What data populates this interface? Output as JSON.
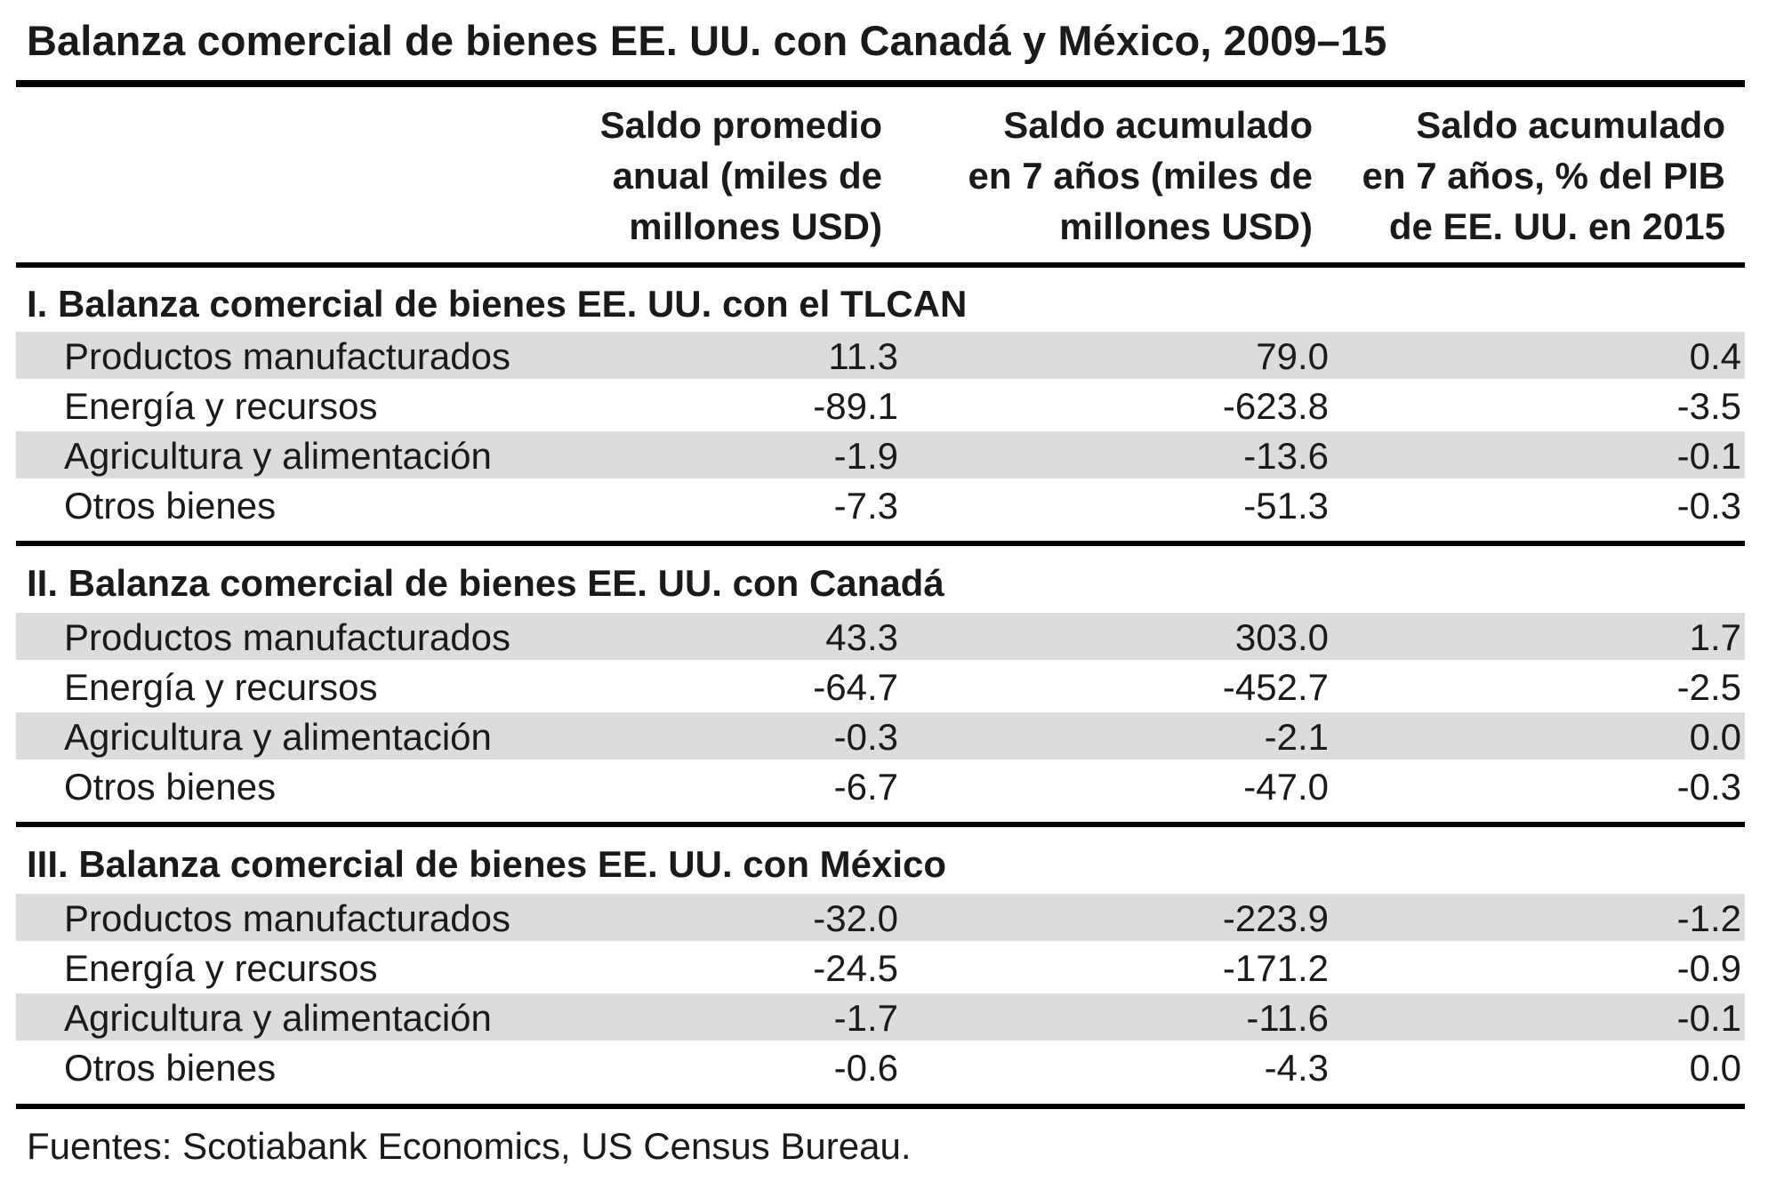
{
  "title": "Balanza comercial de bienes EE. UU. con Canadá y México, 2009–15",
  "columns": [
    [
      "Saldo promedio",
      "anual (miles de",
      "millones USD)"
    ],
    [
      "Saldo acumulado",
      "en 7 años (miles de",
      "millones USD)"
    ],
    [
      "Saldo acumulado",
      "en 7 años, % del PIB",
      "de EE. UU. en 2015"
    ]
  ],
  "sections": [
    {
      "title": "I. Balanza comercial de bienes EE. UU. con el TLCAN",
      "rows": [
        {
          "label": "Productos manufacturados",
          "v1": "11.3",
          "v2": "79.0",
          "v3": "0.4"
        },
        {
          "label": "Energía y recursos",
          "v1": "-89.1",
          "v2": "-623.8",
          "v3": "-3.5"
        },
        {
          "label": "Agricultura y alimentación",
          "v1": "-1.9",
          "v2": "-13.6",
          "v3": "-0.1"
        },
        {
          "label": "Otros bienes",
          "v1": "-7.3",
          "v2": "-51.3",
          "v3": "-0.3"
        }
      ]
    },
    {
      "title": "II. Balanza comercial de bienes EE. UU. con Canadá",
      "rows": [
        {
          "label": "Productos manufacturados",
          "v1": "43.3",
          "v2": "303.0",
          "v3": "1.7"
        },
        {
          "label": "Energía y recursos",
          "v1": "-64.7",
          "v2": "-452.7",
          "v3": "-2.5"
        },
        {
          "label": "Agricultura y alimentación",
          "v1": "-0.3",
          "v2": "-2.1",
          "v3": "0.0"
        },
        {
          "label": "Otros bienes",
          "v1": "-6.7",
          "v2": "-47.0",
          "v3": "-0.3"
        }
      ]
    },
    {
      "title": "III. Balanza comercial de bienes EE. UU. con México",
      "rows": [
        {
          "label": "Productos manufacturados",
          "v1": "-32.0",
          "v2": "-223.9",
          "v3": "-1.2"
        },
        {
          "label": "Energía y recursos",
          "v1": "-24.5",
          "v2": "-171.2",
          "v3": "-0.9"
        },
        {
          "label": "Agricultura y alimentación",
          "v1": "-1.7",
          "v2": "-11.6",
          "v3": "-0.1"
        },
        {
          "label": "Otros bienes",
          "v1": "-0.6",
          "v2": "-4.3",
          "v3": "0.0"
        }
      ]
    }
  ],
  "source": "Fuentes: Scotiabank Economics, US Census Bureau."
}
